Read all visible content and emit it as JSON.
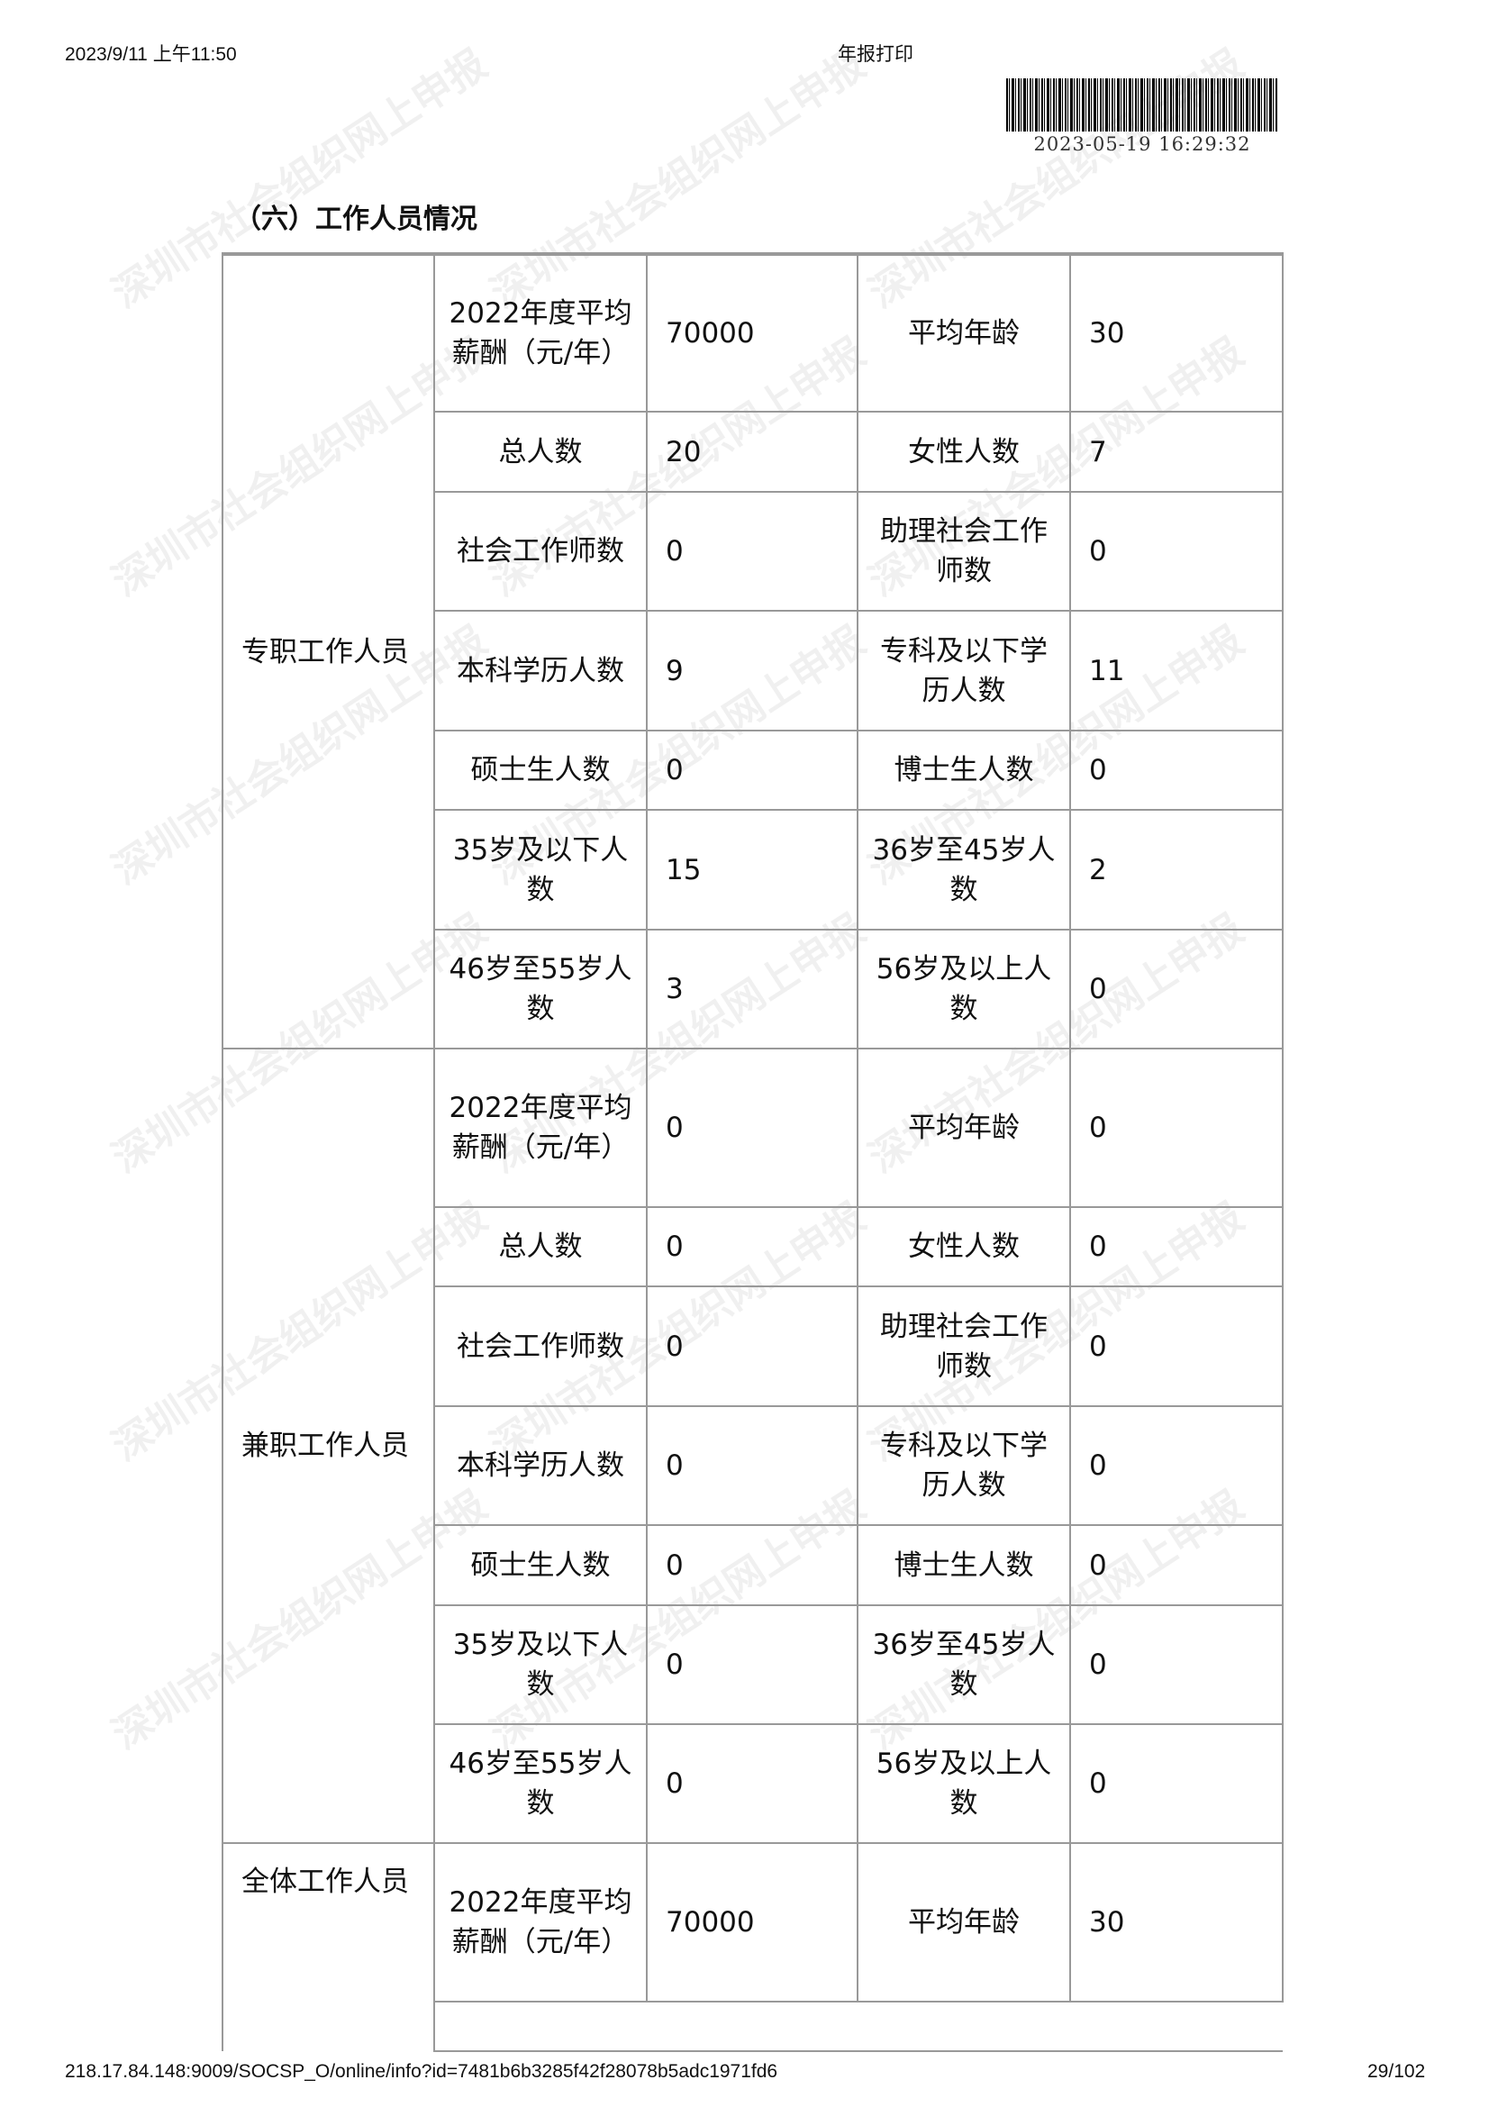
{
  "header": {
    "datetime": "2023/9/11 上午11:50",
    "center_title": "年报打印"
  },
  "barcode": {
    "timestamp": "2023-05-19 16:29:32"
  },
  "watermark": "深圳市社会组织网上申报",
  "section_title": "（六）工作人员情况",
  "groups": [
    {
      "name": "专职工作人员",
      "rows": [
        [
          "2022年度平均薪酬（元/年）",
          "70000",
          "平均年龄",
          "30"
        ],
        [
          "总人数",
          "20",
          "女性人数",
          "7"
        ],
        [
          "社会工作师数",
          "0",
          "助理社会工作师数",
          "0"
        ],
        [
          "本科学历人数",
          "9",
          "专科及以下学历人数",
          "11"
        ],
        [
          "硕士生人数",
          "0",
          "博士生人数",
          "0"
        ],
        [
          "35岁及以下人数",
          "15",
          "36岁至45岁人数",
          "2"
        ],
        [
          "46岁至55岁人数",
          "3",
          "56岁及以上人数",
          "0"
        ]
      ]
    },
    {
      "name": "兼职工作人员",
      "rows": [
        [
          "2022年度平均薪酬（元/年）",
          "0",
          "平均年龄",
          "0"
        ],
        [
          "总人数",
          "0",
          "女性人数",
          "0"
        ],
        [
          "社会工作师数",
          "0",
          "助理社会工作师数",
          "0"
        ],
        [
          "本科学历人数",
          "0",
          "专科及以下学历人数",
          "0"
        ],
        [
          "硕士生人数",
          "0",
          "博士生人数",
          "0"
        ],
        [
          "35岁及以下人数",
          "0",
          "36岁至45岁人数",
          "0"
        ],
        [
          "46岁至55岁人数",
          "0",
          "56岁及以上人数",
          "0"
        ]
      ]
    },
    {
      "name": "全体工作人员",
      "rows": [
        [
          "2022年度平均薪酬（元/年）",
          "70000",
          "平均年龄",
          "30"
        ]
      ]
    }
  ],
  "footer": {
    "url": "218.17.84.148:9009/SOCSP_O/online/info?id=7481b6b3285f42f28078b5adc1971fd6",
    "page": "29/102"
  }
}
